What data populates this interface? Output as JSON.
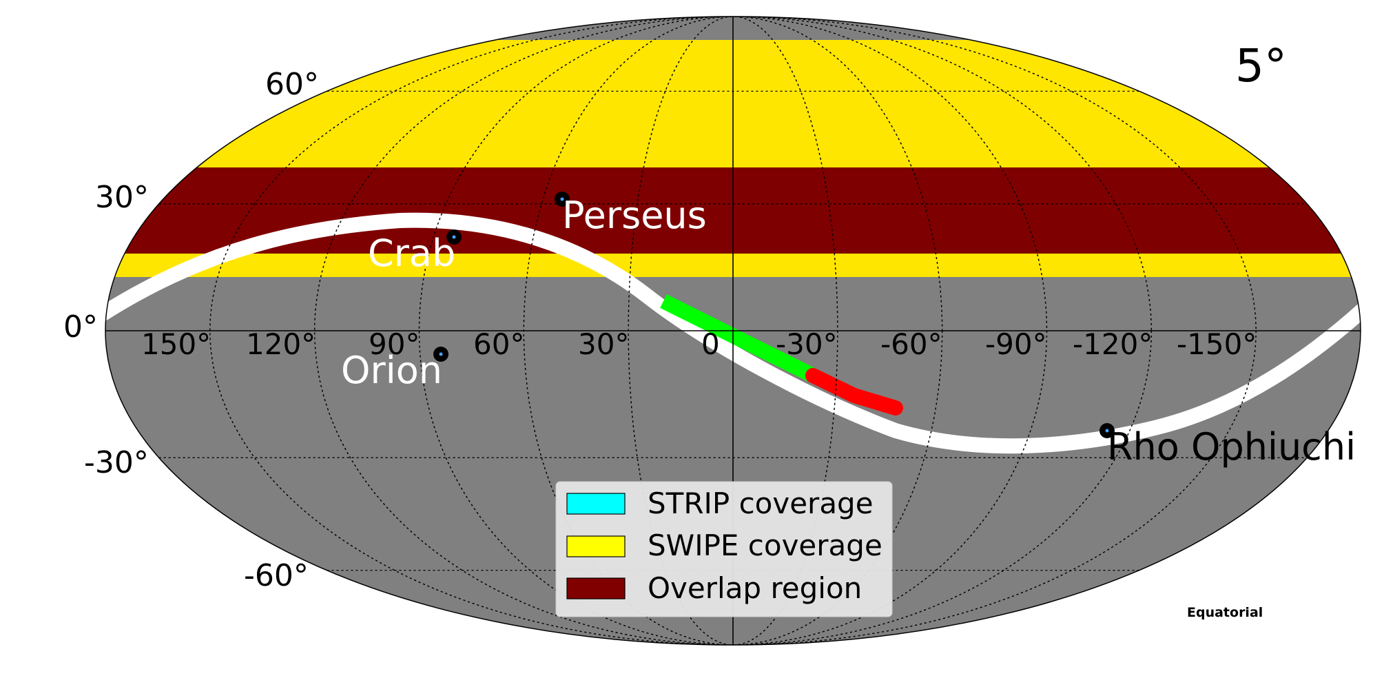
{
  "resolution_label": "5°",
  "coordinate_system": "Equatorial",
  "projection": "Mollweide",
  "colors": {
    "background": "#808080",
    "swipe": "#ffe600",
    "overlap": "#7f0000",
    "galactic_plane": "#ffffff",
    "strip_segment": "#00ff00",
    "strip_segment_end": "#ff0000",
    "legend_strip": "#00ffff",
    "legend_swipe": "#ffff00",
    "legend_overlap": "#800000"
  },
  "latitude_labels": [
    "60°",
    "30°",
    "0°",
    "-30°",
    "-60°"
  ],
  "longitude_labels": [
    "150°",
    "120°",
    "90°",
    "60°",
    "30°",
    "0",
    "-30°",
    "-60°",
    "-90°",
    "-120°",
    "-150°"
  ],
  "sources": [
    {
      "name": "Perseus",
      "ra": 49,
      "dec": 41,
      "color": "#ffffff"
    },
    {
      "name": "Crab",
      "ra": 83.6,
      "dec": 22,
      "color": "#ffffff"
    },
    {
      "name": "Orion",
      "ra": 84,
      "dec": -5.4,
      "color": "#ffffff"
    },
    {
      "name": "Rho Ophiuchi",
      "ra": 246.8,
      "dec": -24.5,
      "color": "#000000"
    }
  ],
  "legend": [
    {
      "label": "STRIP coverage"
    },
    {
      "label": "SWIPE coverage"
    },
    {
      "label": "Overlap region"
    }
  ]
}
